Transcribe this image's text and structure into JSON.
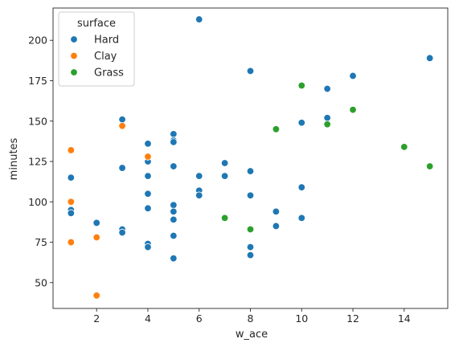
{
  "chart_data": {
    "type": "scatter",
    "title": "",
    "xlabel": "w_ace",
    "ylabel": "minutes",
    "xlim": [
      0.3,
      15.7
    ],
    "ylim": [
      34,
      220
    ],
    "xticks": [
      2,
      4,
      6,
      8,
      10,
      12,
      14
    ],
    "yticks": [
      50,
      75,
      100,
      125,
      150,
      175,
      200
    ],
    "grid": false,
    "legend": {
      "title": "surface",
      "placement": "top-left"
    },
    "series": [
      {
        "name": "Hard",
        "color": "#1f77b4",
        "points": [
          {
            "x": 1,
            "y": 115
          },
          {
            "x": 1,
            "y": 95
          },
          {
            "x": 1,
            "y": 93
          },
          {
            "x": 2,
            "y": 87
          },
          {
            "x": 3,
            "y": 151
          },
          {
            "x": 3,
            "y": 121
          },
          {
            "x": 3,
            "y": 83
          },
          {
            "x": 3,
            "y": 81
          },
          {
            "x": 4,
            "y": 136
          },
          {
            "x": 4,
            "y": 125
          },
          {
            "x": 4,
            "y": 116
          },
          {
            "x": 4,
            "y": 105
          },
          {
            "x": 4,
            "y": 96
          },
          {
            "x": 4,
            "y": 74
          },
          {
            "x": 4,
            "y": 72
          },
          {
            "x": 5,
            "y": 142
          },
          {
            "x": 5,
            "y": 138
          },
          {
            "x": 5,
            "y": 137
          },
          {
            "x": 5,
            "y": 122
          },
          {
            "x": 5,
            "y": 98
          },
          {
            "x": 5,
            "y": 94
          },
          {
            "x": 5,
            "y": 89
          },
          {
            "x": 5,
            "y": 79
          },
          {
            "x": 5,
            "y": 65
          },
          {
            "x": 6,
            "y": 213
          },
          {
            "x": 6,
            "y": 116
          },
          {
            "x": 6,
            "y": 107
          },
          {
            "x": 6,
            "y": 104
          },
          {
            "x": 7,
            "y": 124
          },
          {
            "x": 7,
            "y": 116
          },
          {
            "x": 8,
            "y": 181
          },
          {
            "x": 8,
            "y": 119
          },
          {
            "x": 8,
            "y": 104
          },
          {
            "x": 8,
            "y": 72
          },
          {
            "x": 8,
            "y": 67
          },
          {
            "x": 9,
            "y": 94
          },
          {
            "x": 9,
            "y": 85
          },
          {
            "x": 10,
            "y": 149
          },
          {
            "x": 10,
            "y": 109
          },
          {
            "x": 10,
            "y": 90
          },
          {
            "x": 11,
            "y": 170
          },
          {
            "x": 11,
            "y": 152
          },
          {
            "x": 12,
            "y": 178
          },
          {
            "x": 15,
            "y": 189
          }
        ]
      },
      {
        "name": "Clay",
        "color": "#ff7f0e",
        "points": [
          {
            "x": 1,
            "y": 132
          },
          {
            "x": 1,
            "y": 100
          },
          {
            "x": 1,
            "y": 75
          },
          {
            "x": 2,
            "y": 78
          },
          {
            "x": 2,
            "y": 42
          },
          {
            "x": 3,
            "y": 147
          },
          {
            "x": 4,
            "y": 128
          }
        ]
      },
      {
        "name": "Grass",
        "color": "#2ca02c",
        "points": [
          {
            "x": 7,
            "y": 90
          },
          {
            "x": 8,
            "y": 83
          },
          {
            "x": 9,
            "y": 145
          },
          {
            "x": 10,
            "y": 172
          },
          {
            "x": 11,
            "y": 148
          },
          {
            "x": 12,
            "y": 157
          },
          {
            "x": 14,
            "y": 134
          },
          {
            "x": 15,
            "y": 122
          }
        ]
      }
    ]
  }
}
